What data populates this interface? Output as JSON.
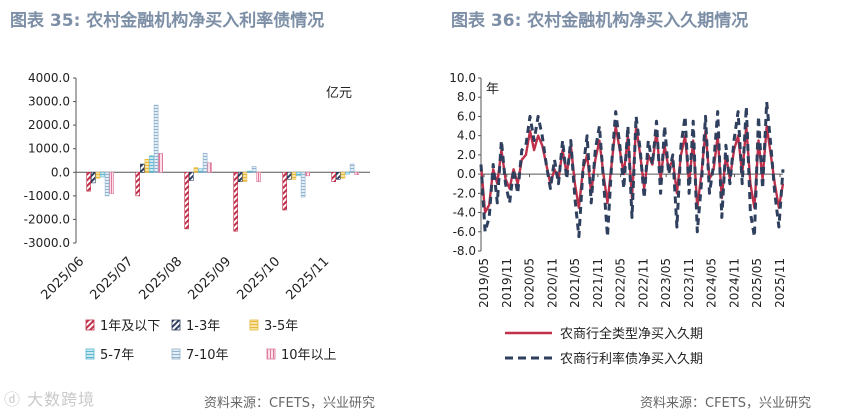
{
  "chart_data": [
    {
      "type": "bar",
      "title": "图表 35: 农村金融机构净买入利率债情况",
      "unit_label": "亿元",
      "categories": [
        "2025/06",
        "2025/07",
        "2025/08",
        "2025/09",
        "2025/10",
        "2025/11"
      ],
      "ylim": [
        -3000,
        4000
      ],
      "yticks": [
        "4000.0",
        "3000.0",
        "2000.0",
        "1000.0",
        "0.0",
        "-1000.0",
        "-2000.0",
        "-3000.0"
      ],
      "series": [
        {
          "name": "1年及以下",
          "color": "#c0304a",
          "pattern": "diag",
          "values": [
            -800,
            -1000,
            -2400,
            -2500,
            -1600,
            -400
          ]
        },
        {
          "name": "1-3年",
          "color": "#2f3f5e",
          "pattern": "diag",
          "values": [
            -450,
            350,
            -350,
            -400,
            -300,
            -300
          ]
        },
        {
          "name": "3-5年",
          "color": "#e8b93c",
          "pattern": "box",
          "values": [
            -250,
            550,
            200,
            -400,
            -300,
            -250
          ]
        },
        {
          "name": "5-7年",
          "color": "#5bb6cf",
          "pattern": "box",
          "values": [
            -200,
            700,
            150,
            50,
            -150,
            -80
          ]
        },
        {
          "name": "7-10年",
          "color": "#8fb2cf",
          "pattern": "box",
          "values": [
            -1000,
            2850,
            800,
            250,
            -1050,
            350
          ]
        },
        {
          "name": "10年以上",
          "color": "#e07a9a",
          "pattern": "vert",
          "values": [
            -900,
            800,
            400,
            -400,
            -150,
            -100
          ]
        }
      ]
    },
    {
      "type": "line",
      "title": "图表 36: 农村金融机构净买入久期情况",
      "unit_label": "年",
      "ylim": [
        -8,
        10
      ],
      "yticks": [
        "10.0",
        "8.0",
        "6.0",
        "4.0",
        "2.0",
        "0.0",
        "-2.0",
        "-4.0",
        "-6.0",
        "-8.0"
      ],
      "xticks": [
        "2019/05",
        "2019/11",
        "2020/05",
        "2020/11",
        "2021/05",
        "2021/11",
        "2022/05",
        "2022/11",
        "2023/05",
        "2023/11",
        "2024/05",
        "2024/11",
        "2025/05",
        "2025/11"
      ],
      "series": [
        {
          "name": "农商行全类型净买入久期",
          "color": "#c0304a",
          "style": "solid",
          "values": [
            1.0,
            -4.0,
            -3.2,
            0.5,
            -1.0,
            2.5,
            -0.5,
            -1.5,
            0.5,
            -1.0,
            1.5,
            2.0,
            4.5,
            2.5,
            4.0,
            3.0,
            1.0,
            -1.0,
            0.5,
            -0.5,
            2.5,
            0.0,
            3.0,
            -1.0,
            -3.5,
            0.5,
            2.0,
            -2.0,
            1.5,
            3.5,
            0.0,
            -3.0,
            1.0,
            5.0,
            2.5,
            0.0,
            4.0,
            -2.5,
            5.0,
            2.0,
            -1.5,
            2.0,
            1.0,
            4.5,
            -0.5,
            3.0,
            0.5,
            1.5,
            -2.0,
            2.0,
            4.0,
            -1.0,
            3.5,
            -3.5,
            0.0,
            4.5,
            -0.5,
            0.5,
            4.0,
            -2.5,
            2.0,
            -0.5,
            2.5,
            4.0,
            0.0,
            5.0,
            -1.0,
            -3.5,
            3.5,
            -0.5,
            5.0,
            2.0,
            -1.0,
            -3.5,
            -1.0
          ]
        },
        {
          "name": "农商行利率债净买入久期",
          "color": "#2f3f5e",
          "style": "dashed",
          "values": [
            1.0,
            -6.0,
            -4.5,
            1.0,
            -3.0,
            3.5,
            -1.0,
            -3.0,
            0.5,
            -2.0,
            2.5,
            3.0,
            6.0,
            3.5,
            6.0,
            4.0,
            1.0,
            -1.5,
            1.5,
            -1.0,
            3.5,
            -0.5,
            3.5,
            -2.5,
            -6.5,
            0.5,
            4.0,
            -3.0,
            2.5,
            5.0,
            -0.5,
            -6.5,
            1.0,
            6.5,
            3.0,
            -1.5,
            5.0,
            -4.5,
            6.0,
            2.5,
            -2.5,
            3.5,
            1.0,
            5.5,
            -2.0,
            5.0,
            0.0,
            2.0,
            -5.5,
            3.0,
            6.0,
            -2.0,
            5.5,
            -6.0,
            -1.0,
            6.0,
            -2.0,
            1.0,
            6.5,
            -4.5,
            3.0,
            -1.0,
            3.5,
            6.5,
            -1.0,
            7.0,
            -4.0,
            -6.5,
            6.0,
            -1.5,
            7.5,
            3.0,
            -2.0,
            -5.5,
            0.5
          ]
        }
      ]
    }
  ],
  "source": "资料来源：CFETS，兴业研究",
  "watermark": "大数跨境"
}
